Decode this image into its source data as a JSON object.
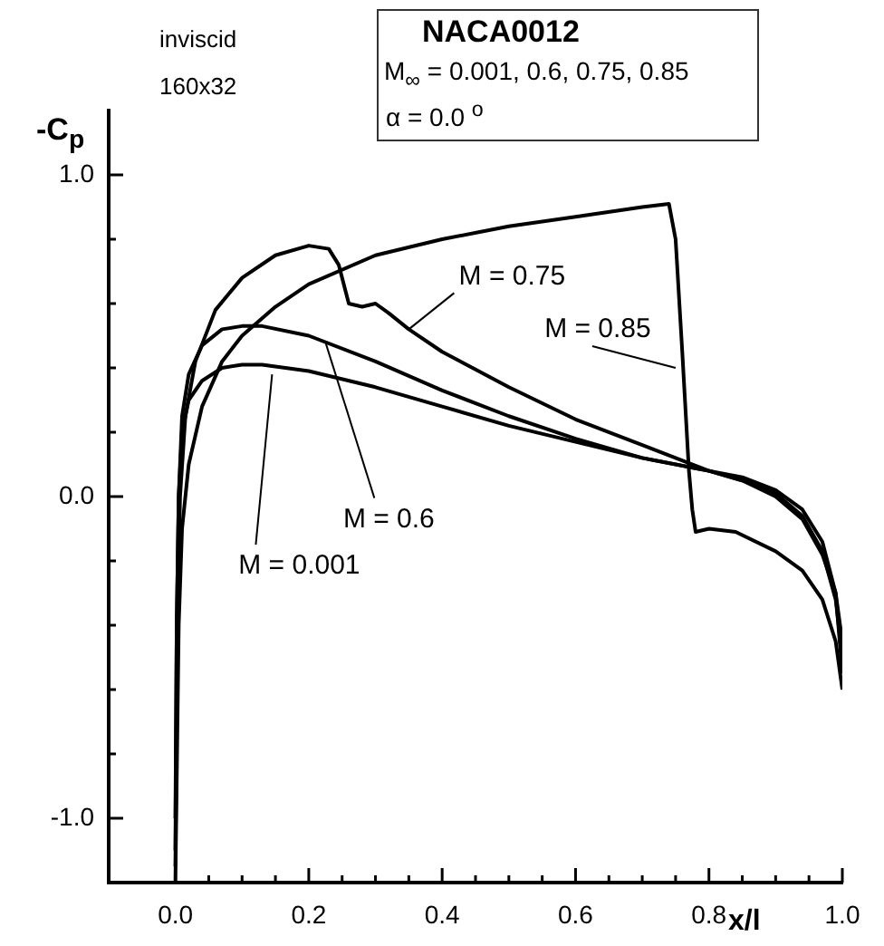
{
  "chart_data": {
    "type": "line",
    "title": "NACA0012",
    "subtitle": "M$_{∞}$ = 0.001, 0.6, 0.75, 0.85",
    "xlabel": "x/l",
    "ylabel": "-C$_{p}$",
    "annotations": [
      "inviscid",
      "160x32",
      "α  = 0.0 $^{o}$",
      {
        "text": "M = 0.75",
        "x": 0.35,
        "y": 0.52
      },
      {
        "text": "M = 0.85",
        "x": 0.75,
        "y": 0.4
      },
      {
        "text": "M = 0.6",
        "x": 0.225,
        "y": 0.48
      },
      {
        "text": "M = 0.001",
        "x": 0.145,
        "y": 0.38
      }
    ],
    "series": [
      {
        "color": "#000000",
        "x": [
          0,
          0.002,
          0.005,
          0.01,
          0.02,
          0.04,
          0.07,
          0.1,
          0.13,
          0.2,
          0.3,
          0.4,
          0.5,
          0.6,
          0.7,
          0.8,
          0.85,
          0.9,
          0.94,
          0.97,
          0.99,
          1.0
        ],
        "values": [
          -1.0,
          -0.4,
          0.0,
          0.2,
          0.3,
          0.36,
          0.4,
          0.41,
          0.41,
          0.39,
          0.34,
          0.28,
          0.22,
          0.17,
          0.12,
          0.08,
          0.05,
          0.0,
          -0.07,
          -0.18,
          -0.3,
          -0.45
        ]
      },
      {
        "color": "#000000",
        "x": [
          0,
          0.002,
          0.005,
          0.01,
          0.02,
          0.04,
          0.07,
          0.1,
          0.13,
          0.2,
          0.3,
          0.4,
          0.5,
          0.6,
          0.7,
          0.8,
          0.85,
          0.9,
          0.94,
          0.97,
          0.99,
          1.0
        ],
        "values": [
          -1.1,
          -0.4,
          0.0,
          0.25,
          0.38,
          0.47,
          0.52,
          0.53,
          0.53,
          0.5,
          0.42,
          0.33,
          0.25,
          0.18,
          0.12,
          0.08,
          0.05,
          0.01,
          -0.06,
          -0.17,
          -0.32,
          -0.5
        ]
      },
      {
        "color": "#000000",
        "x": [
          0,
          0.003,
          0.007,
          0.015,
          0.03,
          0.06,
          0.1,
          0.15,
          0.2,
          0.23,
          0.245,
          0.26,
          0.28,
          0.3,
          0.32,
          0.35,
          0.4,
          0.5,
          0.6,
          0.7,
          0.8,
          0.85,
          0.9,
          0.94,
          0.97,
          0.99,
          1.0
        ],
        "values": [
          -1.15,
          -0.4,
          0.0,
          0.25,
          0.42,
          0.58,
          0.68,
          0.75,
          0.78,
          0.77,
          0.72,
          0.6,
          0.59,
          0.6,
          0.57,
          0.52,
          0.45,
          0.34,
          0.24,
          0.16,
          0.08,
          0.06,
          0.02,
          -0.04,
          -0.14,
          -0.3,
          -0.55
        ]
      },
      {
        "color": "#000000",
        "x": [
          0,
          0.005,
          0.01,
          0.02,
          0.04,
          0.07,
          0.1,
          0.15,
          0.2,
          0.3,
          0.4,
          0.5,
          0.6,
          0.7,
          0.74,
          0.75,
          0.76,
          0.77,
          0.775,
          0.78,
          0.8,
          0.84,
          0.9,
          0.94,
          0.97,
          0.99,
          1.0
        ],
        "values": [
          -1.2,
          -0.4,
          -0.1,
          0.1,
          0.28,
          0.42,
          0.5,
          0.59,
          0.66,
          0.75,
          0.8,
          0.84,
          0.87,
          0.9,
          0.91,
          0.8,
          0.45,
          0.08,
          -0.04,
          -0.11,
          -0.1,
          -0.11,
          -0.17,
          -0.23,
          -0.32,
          -0.45,
          -0.6
        ]
      }
    ],
    "xlim": [
      -0.1,
      1.0
    ],
    "ylim": [
      -1.2,
      1.2
    ],
    "xticks": [
      {
        "value": 0,
        "label": "0.0"
      },
      {
        "value": 0.05,
        "label": null
      },
      {
        "value": 0.1,
        "label": null
      },
      {
        "value": 0.15,
        "label": null
      },
      0.2,
      {
        "value": 0.25,
        "label": null
      },
      {
        "value": 0.3,
        "label": null
      },
      {
        "value": 0.35,
        "label": null
      },
      0.4,
      {
        "value": 0.45,
        "label": null
      },
      {
        "value": 0.5,
        "label": null
      },
      {
        "value": 0.55,
        "label": null
      },
      0.6,
      {
        "value": 0.65,
        "label": null
      },
      {
        "value": 0.7,
        "label": null
      },
      {
        "value": 0.75,
        "label": null
      },
      0.8,
      {
        "value": 0.85,
        "label": null
      },
      {
        "value": 0.9,
        "label": null
      },
      {
        "value": 0.95,
        "label": null
      },
      {
        "value": 1,
        "label": "1.0"
      }
    ],
    "yticks": [
      {
        "value": -1,
        "label": "-1.0"
      },
      {
        "value": -0.8,
        "label": null
      },
      {
        "value": -0.6,
        "label": null
      },
      {
        "value": -0.4,
        "label": null
      },
      {
        "value": -0.2,
        "label": null
      },
      {
        "value": 0,
        "label": "0.0"
      },
      {
        "value": 0.2,
        "label": null
      },
      {
        "value": 0.4,
        "label": null
      },
      {
        "value": 0.6,
        "label": null
      },
      {
        "value": 0.8,
        "label": null
      },
      {
        "value": 1,
        "label": "1.0"
      }
    ],
    "grid": false,
    "legend": false,
    "marker": "none",
    "line_style": "solid"
  }
}
